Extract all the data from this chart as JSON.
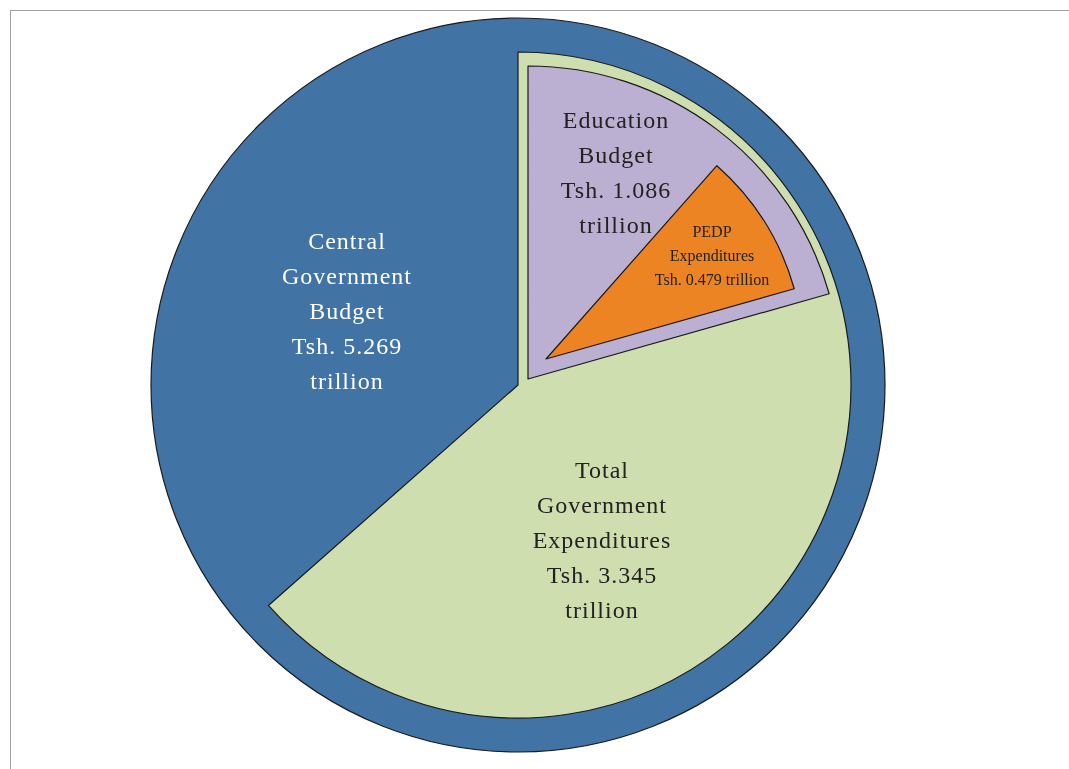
{
  "chart_data": {
    "type": "other",
    "categories": [
      "Central Government Budget",
      "Total Government Expenditures",
      "Education Budget",
      "PEDP Expenditures"
    ],
    "values": [
      5.269,
      3.345,
      1.086,
      0.479
    ],
    "value_labels": [
      "Tsh. 5.269 trillion",
      "Tsh. 3.345 trillion",
      "Tsh. 1.086 trillion",
      "Tsh. 0.479 trillion"
    ],
    "colors": [
      "#4174a5",
      "#cfdeae",
      "#bcb0d2",
      "#ec8423"
    ]
  }
}
